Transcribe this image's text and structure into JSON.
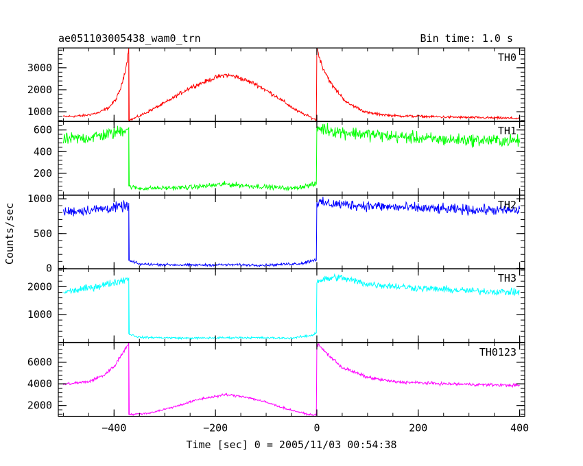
{
  "chart_data": {
    "type": "line",
    "title": "ae051103005438_wam0_trn",
    "bin_label": "Bin time: 1.0 s",
    "xlabel": "Time [sec] 0 = 2005/11/03 00:54:38",
    "ylabel": "Counts/sec",
    "xlim": [
      -510,
      410
    ],
    "x_ticks": [
      -400,
      -200,
      0,
      200,
      400
    ],
    "x_tick_labels": [
      "−400",
      "−200",
      "0",
      "200",
      "400"
    ],
    "grid": false,
    "panels": [
      {
        "name": "TH0",
        "color": "#ff0000",
        "ylim": [
          550,
          3900
        ],
        "y_ticks": [
          1000,
          2000,
          3000
        ],
        "y_tick_labels": [
          "1000",
          "2000",
          "3000"
        ],
        "points": [
          [
            -500,
            780
          ],
          [
            -460,
            820
          ],
          [
            -430,
            960
          ],
          [
            -410,
            1200
          ],
          [
            -395,
            1600
          ],
          [
            -385,
            2200
          ],
          [
            -375,
            3200
          ],
          [
            -371,
            3900
          ],
          [
            -371,
            600
          ],
          [
            -350,
            800
          ],
          [
            -300,
            1400
          ],
          [
            -250,
            2100
          ],
          [
            -200,
            2550
          ],
          [
            -180,
            2680
          ],
          [
            -160,
            2600
          ],
          [
            -120,
            2250
          ],
          [
            -80,
            1700
          ],
          [
            -40,
            1050
          ],
          [
            -10,
            720
          ],
          [
            -1,
            620
          ],
          [
            0,
            3900
          ],
          [
            10,
            3100
          ],
          [
            30,
            2200
          ],
          [
            60,
            1400
          ],
          [
            100,
            950
          ],
          [
            150,
            820
          ],
          [
            250,
            760
          ],
          [
            400,
            700
          ]
        ],
        "noise": 80
      },
      {
        "name": "TH1",
        "color": "#00ff00",
        "ylim": [
          0,
          680
        ],
        "y_ticks": [
          200,
          400,
          600
        ],
        "y_tick_labels": [
          "200",
          "400",
          "600"
        ],
        "points": [
          [
            -500,
            510
          ],
          [
            -450,
            530
          ],
          [
            -400,
            570
          ],
          [
            -371,
            620
          ],
          [
            -371,
            80
          ],
          [
            -350,
            60
          ],
          [
            -250,
            70
          ],
          [
            -180,
            100
          ],
          [
            -120,
            80
          ],
          [
            -50,
            60
          ],
          [
            -1,
            100
          ],
          [
            0,
            620
          ],
          [
            50,
            580
          ],
          [
            150,
            540
          ],
          [
            250,
            510
          ],
          [
            400,
            500
          ]
        ],
        "noise": 40
      },
      {
        "name": "TH2",
        "color": "#0000ff",
        "ylim": [
          -10,
          1050
        ],
        "y_ticks": [
          0,
          500,
          1000
        ],
        "y_tick_labels": [
          "0",
          "500",
          "1000"
        ],
        "points": [
          [
            -500,
            810
          ],
          [
            -450,
            840
          ],
          [
            -400,
            870
          ],
          [
            -371,
            900
          ],
          [
            -371,
            110
          ],
          [
            -350,
            60
          ],
          [
            -250,
            45
          ],
          [
            -180,
            50
          ],
          [
            -100,
            45
          ],
          [
            -30,
            70
          ],
          [
            -1,
            130
          ],
          [
            0,
            940
          ],
          [
            50,
            920
          ],
          [
            150,
            880
          ],
          [
            250,
            850
          ],
          [
            400,
            830
          ]
        ],
        "noise": 50
      },
      {
        "name": "TH3",
        "color": "#00ffff",
        "ylim": [
          0,
          2650
        ],
        "y_ticks": [
          1000,
          2000
        ],
        "y_tick_labels": [
          "1000",
          "2000"
        ],
        "points": [
          [
            -500,
            1800
          ],
          [
            -450,
            1950
          ],
          [
            -400,
            2150
          ],
          [
            -371,
            2300
          ],
          [
            -371,
            300
          ],
          [
            -350,
            180
          ],
          [
            -250,
            150
          ],
          [
            -150,
            170
          ],
          [
            -50,
            150
          ],
          [
            -10,
            250
          ],
          [
            -1,
            350
          ],
          [
            0,
            2200
          ],
          [
            40,
            2350
          ],
          [
            100,
            2100
          ],
          [
            200,
            1950
          ],
          [
            300,
            1850
          ],
          [
            400,
            1800
          ]
        ],
        "noise": 90
      },
      {
        "name": "TH0123",
        "color": "#ff00ff",
        "ylim": [
          1000,
          7800
        ],
        "y_ticks": [
          2000,
          4000,
          6000
        ],
        "y_tick_labels": [
          "2000",
          "4000",
          "6000"
        ],
        "points": [
          [
            -500,
            3950
          ],
          [
            -450,
            4200
          ],
          [
            -420,
            4800
          ],
          [
            -400,
            5600
          ],
          [
            -385,
            6700
          ],
          [
            -371,
            7800
          ],
          [
            -371,
            1150
          ],
          [
            -330,
            1300
          ],
          [
            -280,
            1900
          ],
          [
            -230,
            2600
          ],
          [
            -180,
            3000
          ],
          [
            -140,
            2800
          ],
          [
            -100,
            2300
          ],
          [
            -60,
            1700
          ],
          [
            -20,
            1200
          ],
          [
            -1,
            1100
          ],
          [
            0,
            7700
          ],
          [
            20,
            6800
          ],
          [
            50,
            5500
          ],
          [
            100,
            4600
          ],
          [
            150,
            4200
          ],
          [
            250,
            4000
          ],
          [
            400,
            3850
          ]
        ],
        "noise": 120
      }
    ]
  }
}
